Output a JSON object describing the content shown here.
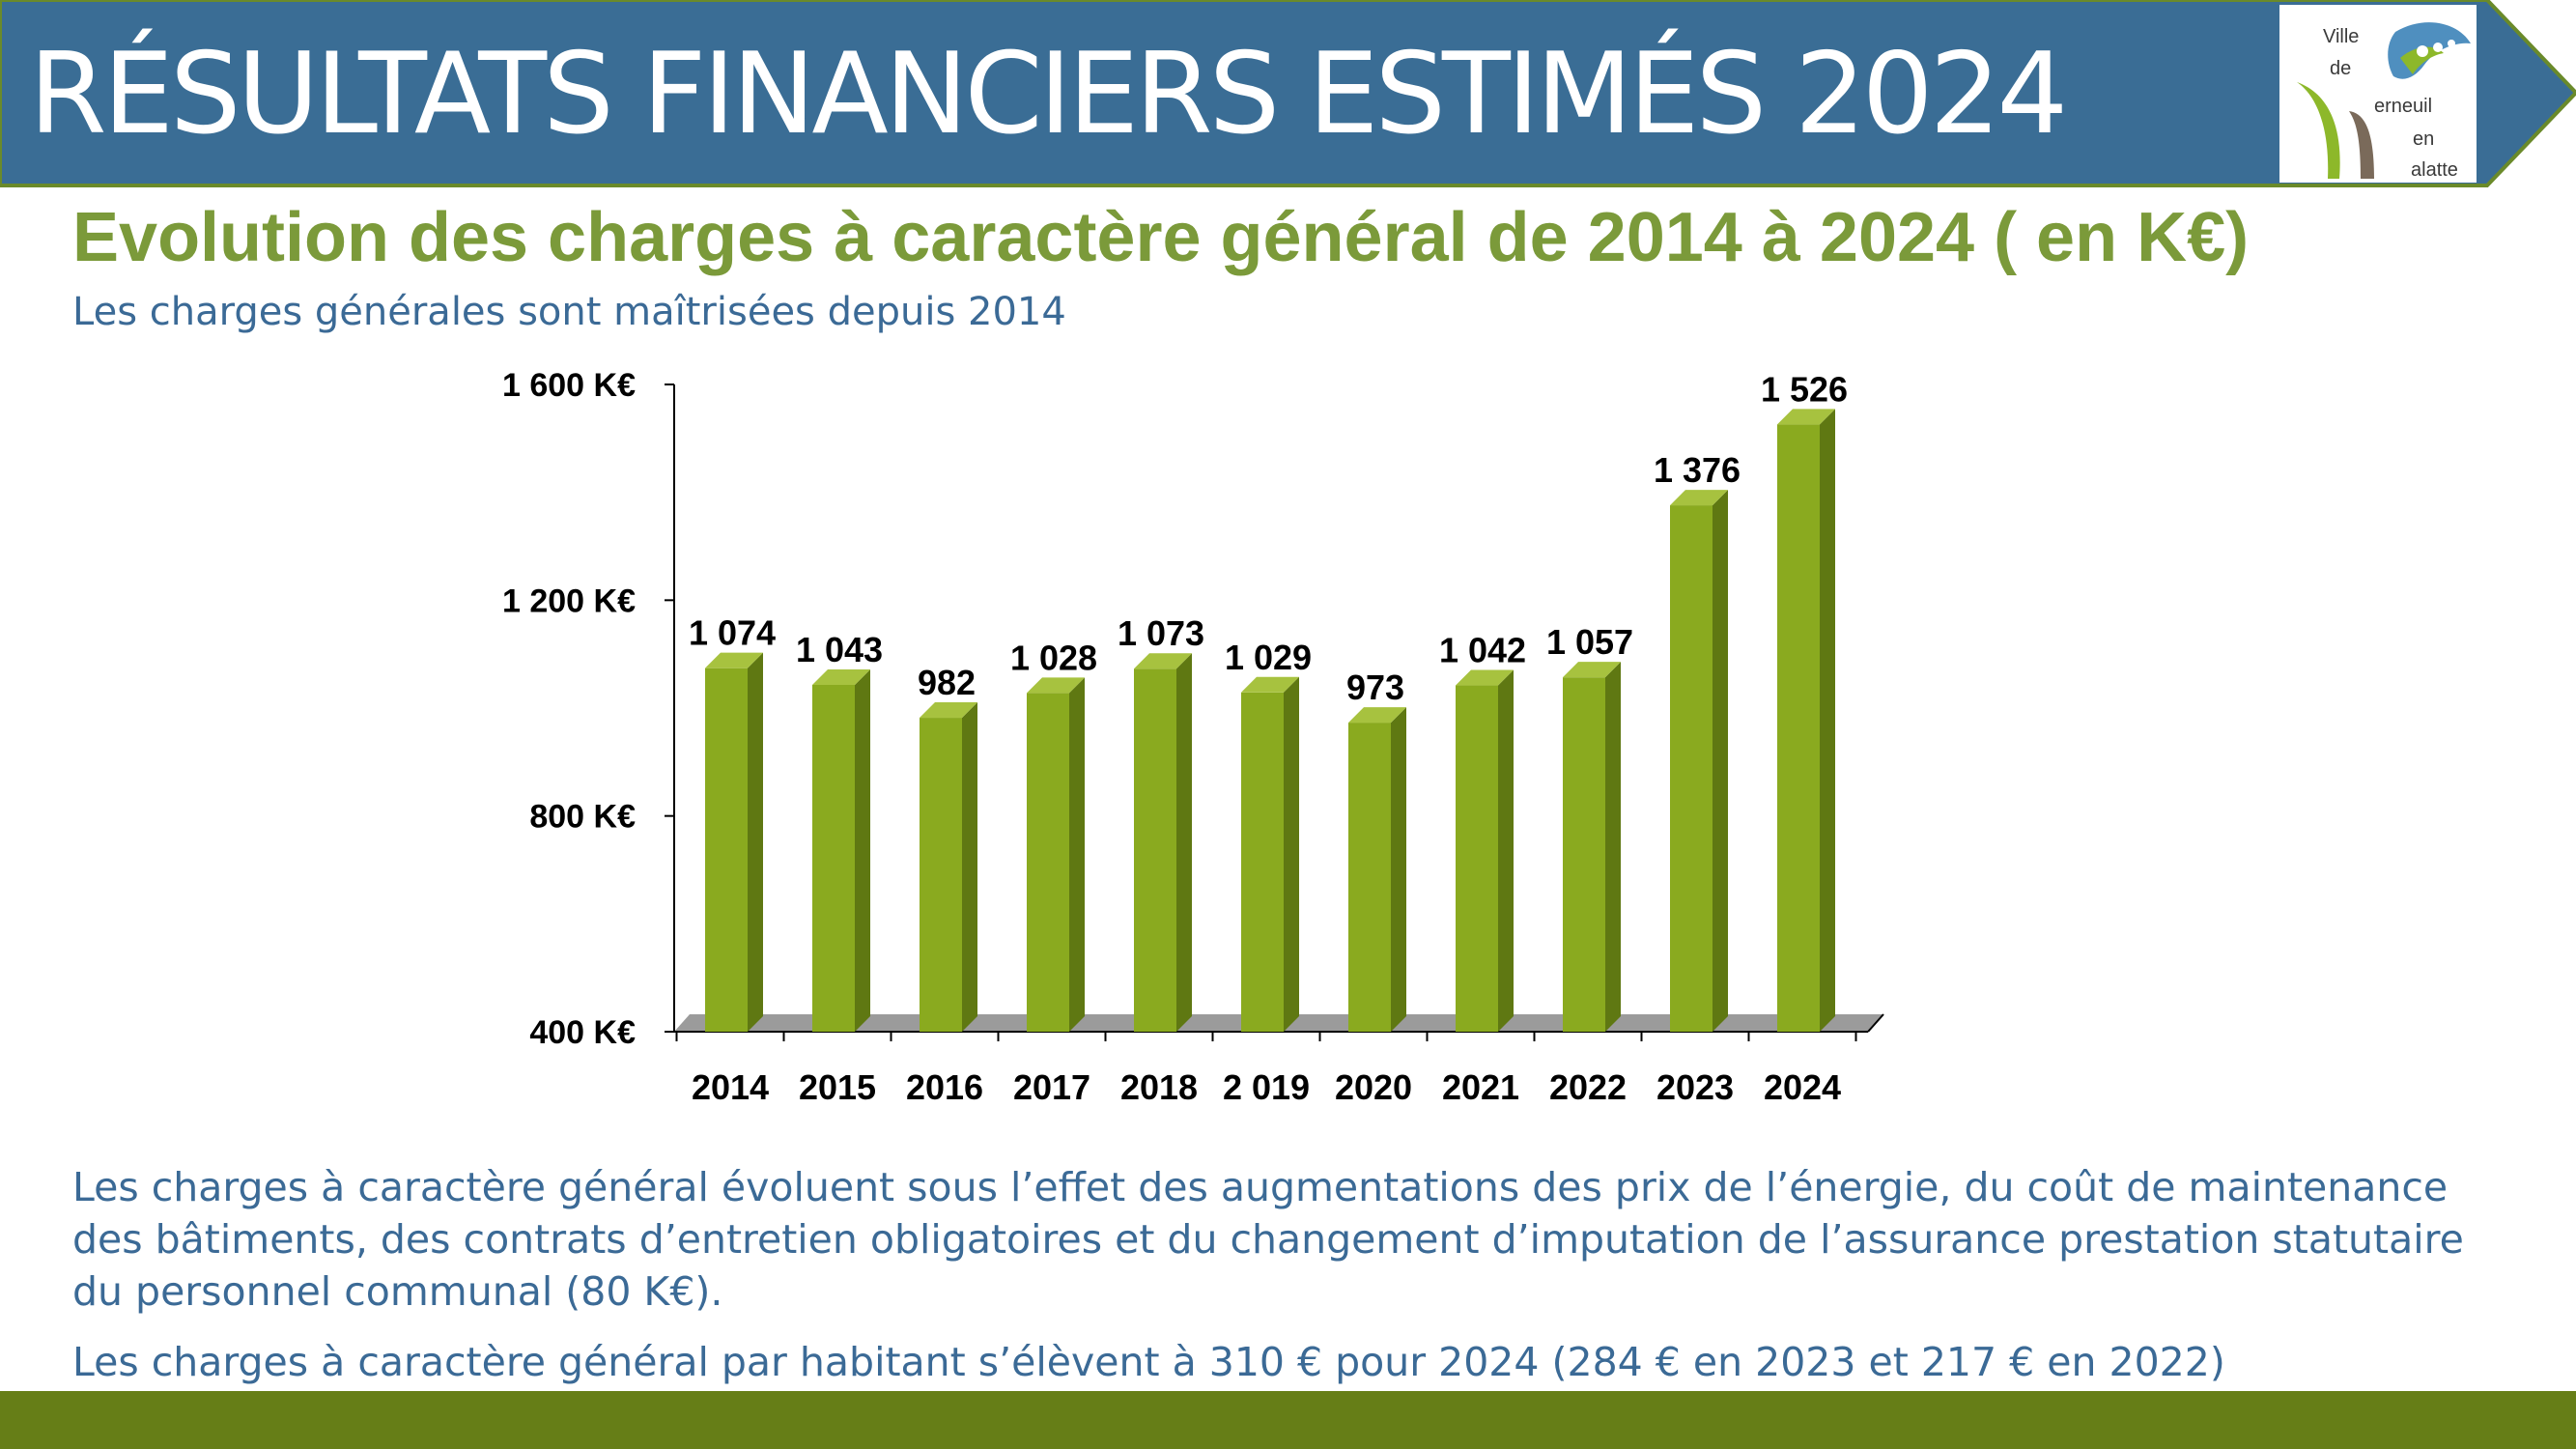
{
  "header": {
    "title": "RÉSULTATS FINANCIERS ESTIMÉS 2024",
    "banner_color": "#3a6d95",
    "banner_border_color": "#6a8a2a"
  },
  "logo": {
    "line1": "Ville",
    "line2": "de",
    "line3": "erneuil",
    "line4": "en",
    "line5": "alatte"
  },
  "content": {
    "subtitle": "Evolution des charges à caractère général de 2014 à 2024  ( en K€)",
    "tagline": "Les charges générales sont maîtrisées depuis 2014",
    "paragraph1": "Les charges à caractère général évoluent sous l’effet des augmentations des prix de l’énergie, du coût de maintenance des bâtiments, des contrats d’entretien obligatoires et du changement d’imputation de l’assurance prestation statutaire du personnel communal (80 K€).",
    "paragraph2": "Les charges à caractère général  par habitant s’élèvent à 310 € pour 2024 (284 € en 2023 et 217 € en 2022)"
  },
  "chart_data": {
    "type": "bar",
    "categories": [
      "2014",
      "2015",
      "2016",
      "2017",
      "2018",
      "2 019",
      "2020",
      "2021",
      "2022",
      "2023",
      "2024"
    ],
    "values": [
      1074,
      1043,
      982,
      1028,
      1073,
      1029,
      973,
      1042,
      1057,
      1376,
      1526
    ],
    "value_labels": [
      "1 074",
      "1 043",
      "982",
      "1 028",
      "1 073",
      "1 029",
      "973",
      "1 042",
      "1 057",
      "1 376",
      "1 526"
    ],
    "ylim": [
      400,
      1600
    ],
    "y_ticks": [
      400,
      800,
      1200,
      1600
    ],
    "y_tick_labels": [
      "400 K€",
      "800 K€",
      "1 200 K€",
      "1 600 K€"
    ],
    "grid": false,
    "legend": "none",
    "bar_color": "#8aaa1f",
    "bar_side_color": "#5f7812",
    "bar_top_color": "#a7c23f",
    "floor_color": "#9b9b9b"
  },
  "footer": {
    "bar_color": "#667e17"
  }
}
